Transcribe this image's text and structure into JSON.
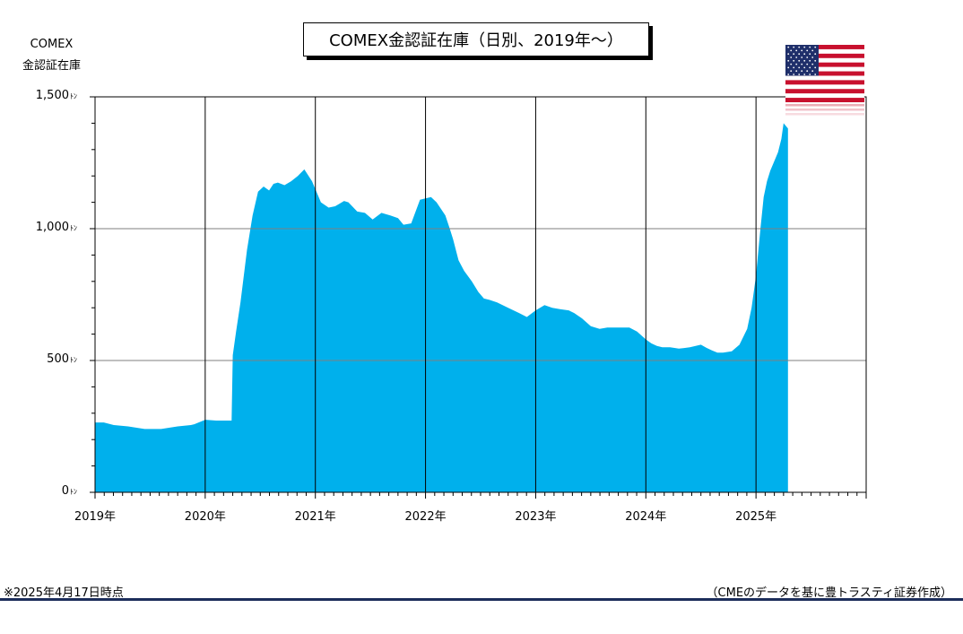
{
  "header": {
    "title": "COMEX金認証在庫（日別、2019年～）"
  },
  "footer": {
    "note_left": "※2025年4月17日時点",
    "source": "（CMEのデータを基に豊トラスティ証券作成）"
  },
  "flag": {
    "icon": "us-flag-icon",
    "stripe_red": "#c8102e",
    "canton_blue": "#1f2f6a"
  },
  "chart_data": {
    "type": "area",
    "ylabel_lines": [
      "COMEX",
      "金認証在庫"
    ],
    "yunit": "ﾄﾝ",
    "ylim": [
      0,
      1500
    ],
    "yticks": [
      {
        "value": 0,
        "label": "0"
      },
      {
        "value": 500,
        "label": "500"
      },
      {
        "value": 1000,
        "label": "1,000"
      },
      {
        "value": 1500,
        "label": "1,500"
      }
    ],
    "xlim": [
      2019.0,
      2026.0
    ],
    "xticks": [
      {
        "value": 2019,
        "label": "2019年"
      },
      {
        "value": 2020,
        "label": "2020年"
      },
      {
        "value": 2021,
        "label": "2021年"
      },
      {
        "value": 2022,
        "label": "2022年"
      },
      {
        "value": 2023,
        "label": "2023年"
      },
      {
        "value": 2024,
        "label": "2024年"
      },
      {
        "value": 2025,
        "label": "2025年"
      }
    ],
    "grid": true,
    "color": "#00b0ec",
    "x": [
      2019.0,
      2019.08,
      2019.17,
      2019.3,
      2019.45,
      2019.6,
      2019.75,
      2019.87,
      2019.9,
      2020.0,
      2020.1,
      2020.24,
      2020.25,
      2020.28,
      2020.32,
      2020.38,
      2020.43,
      2020.48,
      2020.53,
      2020.58,
      2020.62,
      2020.66,
      2020.72,
      2020.78,
      2020.84,
      2020.9,
      2020.97,
      2021.05,
      2021.12,
      2021.18,
      2021.22,
      2021.26,
      2021.3,
      2021.38,
      2021.45,
      2021.52,
      2021.6,
      2021.68,
      2021.75,
      2021.8,
      2021.87,
      2021.95,
      2022.05,
      2022.1,
      2022.18,
      2022.22,
      2022.25,
      2022.3,
      2022.35,
      2022.42,
      2022.48,
      2022.53,
      2022.58,
      2022.65,
      2022.75,
      2022.85,
      2022.92,
      2023.0,
      2023.08,
      2023.15,
      2023.22,
      2023.3,
      2023.35,
      2023.42,
      2023.5,
      2023.58,
      2023.65,
      2023.72,
      2023.78,
      2023.85,
      2023.92,
      2024.0,
      2024.05,
      2024.1,
      2024.15,
      2024.22,
      2024.3,
      2024.4,
      2024.5,
      2024.55,
      2024.6,
      2024.65,
      2024.7,
      2024.78,
      2024.85,
      2024.92,
      2024.96,
      2025.0,
      2025.04,
      2025.07,
      2025.1,
      2025.13,
      2025.16,
      2025.2,
      2025.23,
      2025.25,
      2025.27,
      2025.29
    ],
    "values": [
      265,
      265,
      255,
      250,
      240,
      240,
      250,
      255,
      258,
      275,
      272,
      272,
      520,
      610,
      720,
      920,
      1050,
      1140,
      1160,
      1145,
      1170,
      1175,
      1165,
      1180,
      1200,
      1225,
      1180,
      1100,
      1080,
      1085,
      1095,
      1105,
      1100,
      1065,
      1060,
      1035,
      1060,
      1050,
      1040,
      1015,
      1020,
      1110,
      1120,
      1100,
      1050,
      1000,
      960,
      880,
      840,
      800,
      760,
      735,
      730,
      720,
      700,
      680,
      665,
      690,
      710,
      700,
      695,
      690,
      680,
      660,
      630,
      620,
      625,
      625,
      625,
      625,
      610,
      580,
      565,
      555,
      550,
      550,
      545,
      550,
      560,
      548,
      538,
      530,
      530,
      535,
      560,
      620,
      700,
      820,
      1000,
      1120,
      1180,
      1220,
      1250,
      1290,
      1340,
      1400,
      1390,
      1380
    ]
  }
}
